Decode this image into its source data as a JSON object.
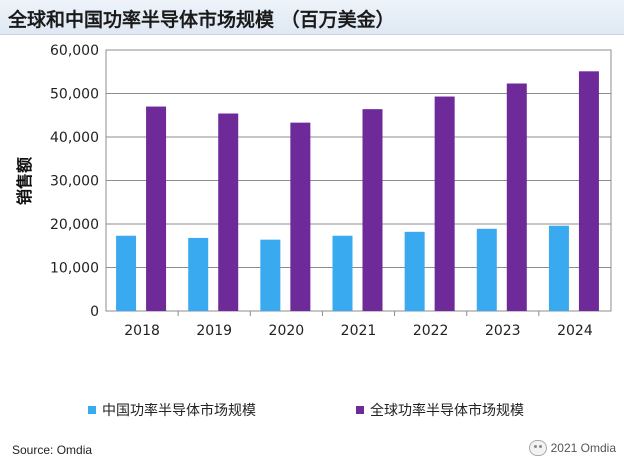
{
  "title": "全球和中国功率半导体市场规模 （百万美金）",
  "source": "Source: Omdia",
  "watermark": "2021 Omdia",
  "chart_data": {
    "type": "bar",
    "categories": [
      "2018",
      "2019",
      "2020",
      "2021",
      "2022",
      "2023",
      "2024"
    ],
    "series": [
      {
        "name": "中国功率半导体市场规模",
        "color": "#3aaaf0",
        "values": [
          17300,
          16800,
          16400,
          17300,
          18200,
          18900,
          19600
        ]
      },
      {
        "name": "全球功率半导体市场规模",
        "color": "#6f2a9a",
        "values": [
          47000,
          45400,
          43300,
          46400,
          49300,
          52300,
          55100
        ]
      }
    ],
    "ylabel": "销售额",
    "ylim": [
      0,
      60000
    ],
    "yticks": [
      "0",
      "10,000",
      "20,000",
      "30,000",
      "40,000",
      "50,000",
      "60,000"
    ],
    "grid": true,
    "legend_position": "bottom"
  }
}
